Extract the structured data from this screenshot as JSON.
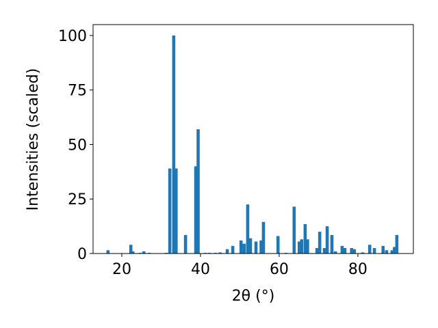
{
  "chart_data": {
    "type": "bar",
    "xlabel": "2θ (°)",
    "ylabel": "Intensities (scaled)",
    "color": "#1f77b4",
    "x": [
      16.5,
      22.3,
      22.8,
      24.7,
      25.6,
      27,
      31.3,
      32.2,
      33.2,
      33.8,
      36.2,
      38.8,
      39.4,
      41.2,
      42.3,
      43.8,
      45,
      46.8,
      48.2,
      50.3,
      51.1,
      52,
      52.7,
      54.1,
      55.4,
      56,
      59.7,
      61.7,
      63.8,
      65.1,
      65.7,
      66.6,
      67.2,
      69.6,
      70.3,
      71.5,
      72.2,
      73.4,
      74.3,
      76,
      76.7,
      78.4,
      79.1,
      81.2,
      83,
      84.2,
      86.4,
      87.3,
      88.7,
      89.3,
      89.9
    ],
    "values": [
      1.5,
      4,
      1,
      0.3,
      1,
      0.3,
      0.3,
      39,
      100,
      39,
      8.5,
      40,
      57,
      0.3,
      0.3,
      0.3,
      0.5,
      2,
      3.5,
      6,
      4.5,
      22.5,
      7,
      5.5,
      6,
      14.5,
      8,
      0.3,
      21.5,
      5.5,
      6.5,
      13.5,
      6.5,
      2.5,
      10,
      2.5,
      12.5,
      8.5,
      1,
      3.5,
      2.5,
      2.5,
      2,
      0.5,
      4,
      2.5,
      3.5,
      1.5,
      1.5,
      3,
      8.5
    ],
    "xlim": [
      12.7,
      94.1
    ],
    "ylim": [
      0,
      105
    ],
    "xticks": [
      20,
      40,
      60,
      80
    ],
    "yticks": [
      0,
      25,
      50,
      75,
      100
    ]
  }
}
